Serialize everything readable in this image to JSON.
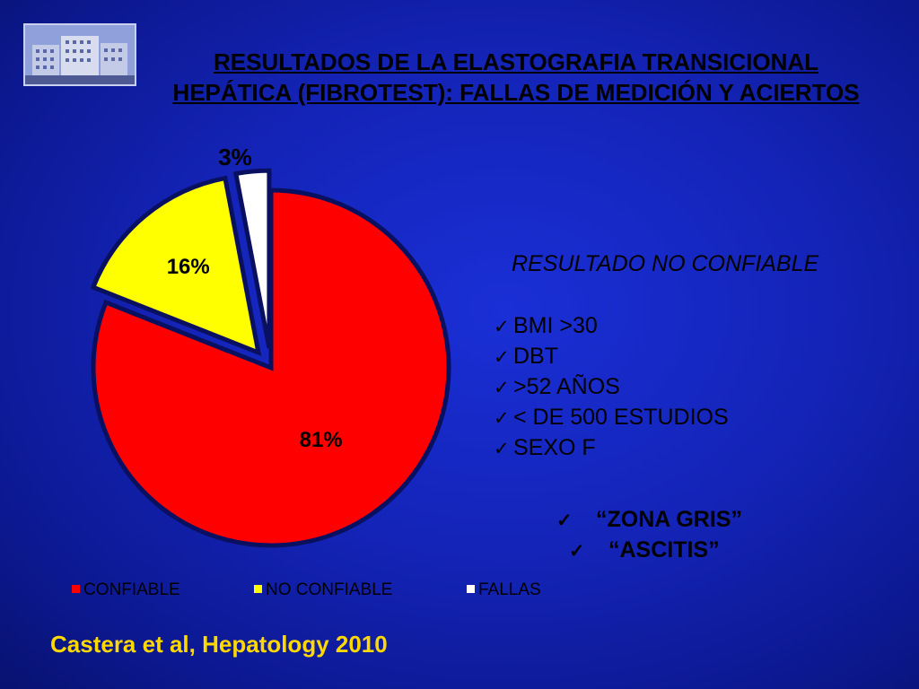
{
  "title": "RESULTADOS DE LA ELASTOGRAFIA TRANSICIONAL HEPÁTICA (FIBROTEST): FALLAS DE MEDICIÓN Y ACIERTOS",
  "chart_data": {
    "type": "pie",
    "title": "",
    "slices": [
      {
        "name": "CONFIABLE",
        "value": 81,
        "label": "81%",
        "color": "#ff0000",
        "exploded": false
      },
      {
        "name": "NO CONFIABLE",
        "value": 16,
        "label": "16%",
        "color": "#ffff00",
        "exploded": true
      },
      {
        "name": "FALLAS",
        "value": 3,
        "label": "3%",
        "color": "#ffffff",
        "exploded": true
      }
    ],
    "legend_placement": "bottom"
  },
  "criteria": {
    "heading": "RESULTADO NO CONFIABLE",
    "check_icon": "check-icon",
    "items": [
      ">30",
      "DBT",
      ">52 AÑOS",
      "< DE 500 ESTUDIOS",
      "SEXO F"
    ],
    "bmi_prefix": "BMI "
  },
  "extra": {
    "items": [
      "“ZONA GRIS”",
      "“ASCITIS”"
    ]
  },
  "citation": "Castera et al, Hepatology 2010",
  "colors": {
    "background": "#1424b8",
    "citation": "#ffd800",
    "slice_border": "#0a1060"
  }
}
